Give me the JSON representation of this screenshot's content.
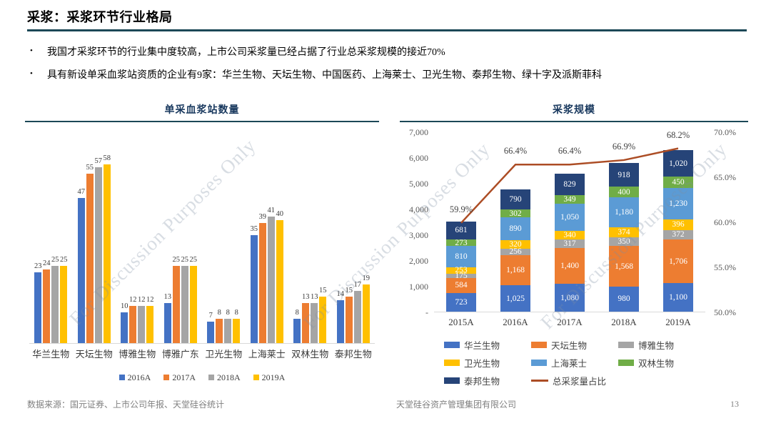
{
  "page": {
    "title": "采浆：采浆环节行业格局",
    "bullet_marker": "•",
    "bullets": [
      "我国才采浆环节的行业集中度较高，上市公司采浆量已经占据了行业总采浆规模的接近70%",
      "具有新设单采血浆站资质的企业有9家：华兰生物、天坛生物、中国医药、上海莱士、卫光生物、泰邦生物、绿十字及派斯菲科"
    ],
    "watermark_text": "For Discussion Purposes Only",
    "footer": {
      "source": "数据来源：国元证券、上市公司年报、天堂硅谷统计",
      "company": "天堂硅谷资产管理集团有限公司",
      "page_number": "13"
    }
  },
  "colors": {
    "rule_teal": "#1C4857",
    "chart_title_navy": "#17375D",
    "baseline_gray": "#D9D9D9",
    "series_blue": "#4472C4",
    "series_orange": "#ED7D31",
    "series_gray": "#A5A5A5",
    "series_yellow": "#FFC000",
    "series_lightblue": "#5B9BD5",
    "series_green": "#70AD47",
    "series_navy": "#264478",
    "line_rust": "#AC4D25"
  },
  "chart_data": [
    {
      "type": "bar",
      "title": "单采血浆站数量",
      "categories": [
        "华兰生物",
        "天坛生物",
        "博雅生物",
        "博雅广东",
        "卫光生物",
        "上海莱士",
        "双林生物",
        "泰邦生物"
      ],
      "series": [
        {
          "name": "2016A",
          "color": "#4472C4",
          "values": [
            23,
            47,
            10,
            13,
            7,
            35,
            8,
            14
          ]
        },
        {
          "name": "2017A",
          "color": "#ED7D31",
          "values": [
            24,
            55,
            12,
            25,
            8,
            39,
            13,
            15
          ]
        },
        {
          "name": "2018A",
          "color": "#A5A5A5",
          "values": [
            25,
            57,
            12,
            25,
            8,
            41,
            13,
            17
          ]
        },
        {
          "name": "2019A",
          "color": "#FFC000",
          "values": [
            25,
            58,
            12,
            25,
            8,
            40,
            15,
            19
          ]
        }
      ],
      "ylim": [
        0,
        62
      ],
      "grid": false,
      "legend_position": "bottom"
    },
    {
      "type": "bar",
      "subtype": "stacked-with-line",
      "title": "采浆规模",
      "categories": [
        "2015A",
        "2016A",
        "2017A",
        "2018A",
        "2019A"
      ],
      "series": [
        {
          "name": "华兰生物",
          "color": "#4472C4",
          "values": [
            723,
            1025,
            1080,
            980,
            1100
          ]
        },
        {
          "name": "天坛生物",
          "color": "#ED7D31",
          "values": [
            584,
            1168,
            1400,
            1568,
            1706
          ]
        },
        {
          "name": "博雅生物",
          "color": "#A5A5A5",
          "values": [
            175,
            256,
            317,
            350,
            372
          ]
        },
        {
          "name": "卫光生物",
          "color": "#FFC000",
          "values": [
            253,
            320,
            340,
            374,
            396
          ]
        },
        {
          "name": "上海莱士",
          "color": "#5B9BD5",
          "values": [
            810,
            890,
            1050,
            1180,
            1230
          ]
        },
        {
          "name": "双林生物",
          "color": "#70AD47",
          "values": [
            273,
            302,
            349,
            400,
            450
          ]
        },
        {
          "name": "泰邦生物",
          "color": "#264478",
          "values": [
            681,
            790,
            829,
            918,
            1020
          ]
        }
      ],
      "line_series": {
        "name": "总采浆量占比",
        "color": "#AC4D25",
        "values_pct": [
          59.9,
          66.4,
          66.4,
          66.9,
          68.2
        ]
      },
      "left_axis": {
        "labels": [
          "7,000",
          "6,000",
          "5,000",
          "4,000",
          "3,000",
          "2,000",
          "1,000",
          "-"
        ],
        "values": [
          7000,
          6000,
          5000,
          4000,
          3000,
          2000,
          1000,
          0
        ],
        "min": 0,
        "max": 7000
      },
      "right_axis": {
        "labels": [
          "70.0%",
          "65.0%",
          "60.0%",
          "55.0%",
          "50.0%"
        ],
        "values": [
          70,
          65,
          60,
          55,
          50
        ],
        "min": 50,
        "max": 70
      },
      "grid": false,
      "legend_position": "bottom"
    }
  ]
}
